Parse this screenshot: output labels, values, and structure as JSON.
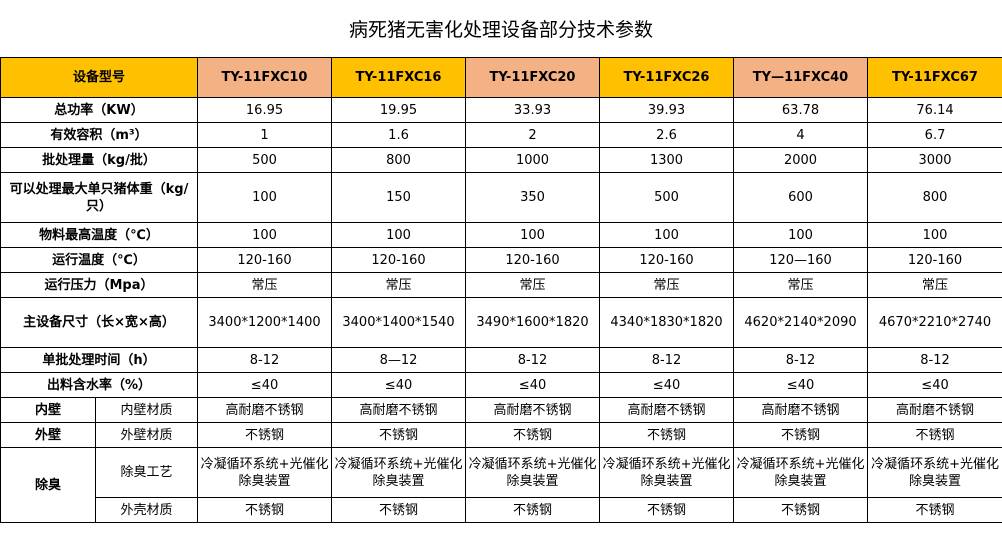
{
  "title": "病死猪无害化处理设备部分技术参数",
  "colors": {
    "header_gold": "#FFC000",
    "header_salmon": "#F4B183"
  },
  "header": {
    "label": "设备型号",
    "models": [
      "TY-11FXC10",
      "TY-11FXC16",
      "TY-11FXC20",
      "TY-11FXC26",
      "TY—11FXC40",
      "TY-11FXC67"
    ]
  },
  "rows": [
    {
      "label": "总功率（KW）",
      "values": [
        "16.95",
        "19.95",
        "33.93",
        "39.93",
        "63.78",
        "76.14"
      ]
    },
    {
      "label": "有效容积（m³）",
      "values": [
        "1",
        "1.6",
        "2",
        "2.6",
        "4",
        "6.7"
      ]
    },
    {
      "label": "批处理量（kg/批）",
      "values": [
        "500",
        "800",
        "1000",
        "1300",
        "2000",
        "3000"
      ]
    },
    {
      "label": "可以处理最大单只猪体重（kg/只）",
      "values": [
        "100",
        "150",
        "350",
        "500",
        "600",
        "800"
      ]
    },
    {
      "label": "物料最高温度（℃）",
      "values": [
        "100",
        "100",
        "100",
        "100",
        "100",
        "100"
      ]
    },
    {
      "label": "运行温度（℃）",
      "values": [
        "120-160",
        "120-160",
        "120-160",
        "120-160",
        "120—160",
        "120-160"
      ]
    },
    {
      "label": "运行压力（Mpa）",
      "values": [
        "常压",
        "常压",
        "常压",
        "常压",
        "常压",
        "常压"
      ]
    },
    {
      "label": "主设备尺寸（长×宽×高）",
      "values": [
        "3400*1200*1400",
        "3400*1400*1540",
        "3490*1600*1820",
        "4340*1830*1820",
        "4620*2140*2090",
        "4670*2210*2740"
      ]
    },
    {
      "label": "单批处理时间（h）",
      "values": [
        "8-12",
        "8—12",
        "8-12",
        "8-12",
        "8-12",
        "8-12"
      ]
    },
    {
      "label": "出料含水率（%）",
      "values": [
        "≤40",
        "≤40",
        "≤40",
        "≤40",
        "≤40",
        "≤40"
      ]
    }
  ],
  "groups": {
    "inner": {
      "label": "内壁",
      "sub": "内壁材质",
      "values": [
        "高耐磨不锈钢",
        "高耐磨不锈钢",
        "高耐磨不锈钢",
        "高耐磨不锈钢",
        "高耐磨不锈钢",
        "高耐磨不锈钢"
      ]
    },
    "outer": {
      "label": "外壁",
      "sub": "外壁材质",
      "values": [
        "不锈钢",
        "不锈钢",
        "不锈钢",
        "不锈钢",
        "不锈钢",
        "不锈钢"
      ]
    },
    "deodor": {
      "label": "除臭",
      "process": {
        "sub": "除臭工艺",
        "values": [
          "冷凝循环系统+光催化除臭装置",
          "冷凝循环系统+光催化除臭装置",
          "冷凝循环系统+光催化除臭装置",
          "冷凝循环系统+光催化除臭装置",
          "冷凝循环系统+光催化除臭装置",
          "冷凝循环系统+光催化除臭装置"
        ]
      },
      "shell": {
        "sub": "外壳材质",
        "values": [
          "不锈钢",
          "不锈钢",
          "不锈钢",
          "不锈钢",
          "不锈钢",
          "不锈钢"
        ]
      }
    }
  }
}
